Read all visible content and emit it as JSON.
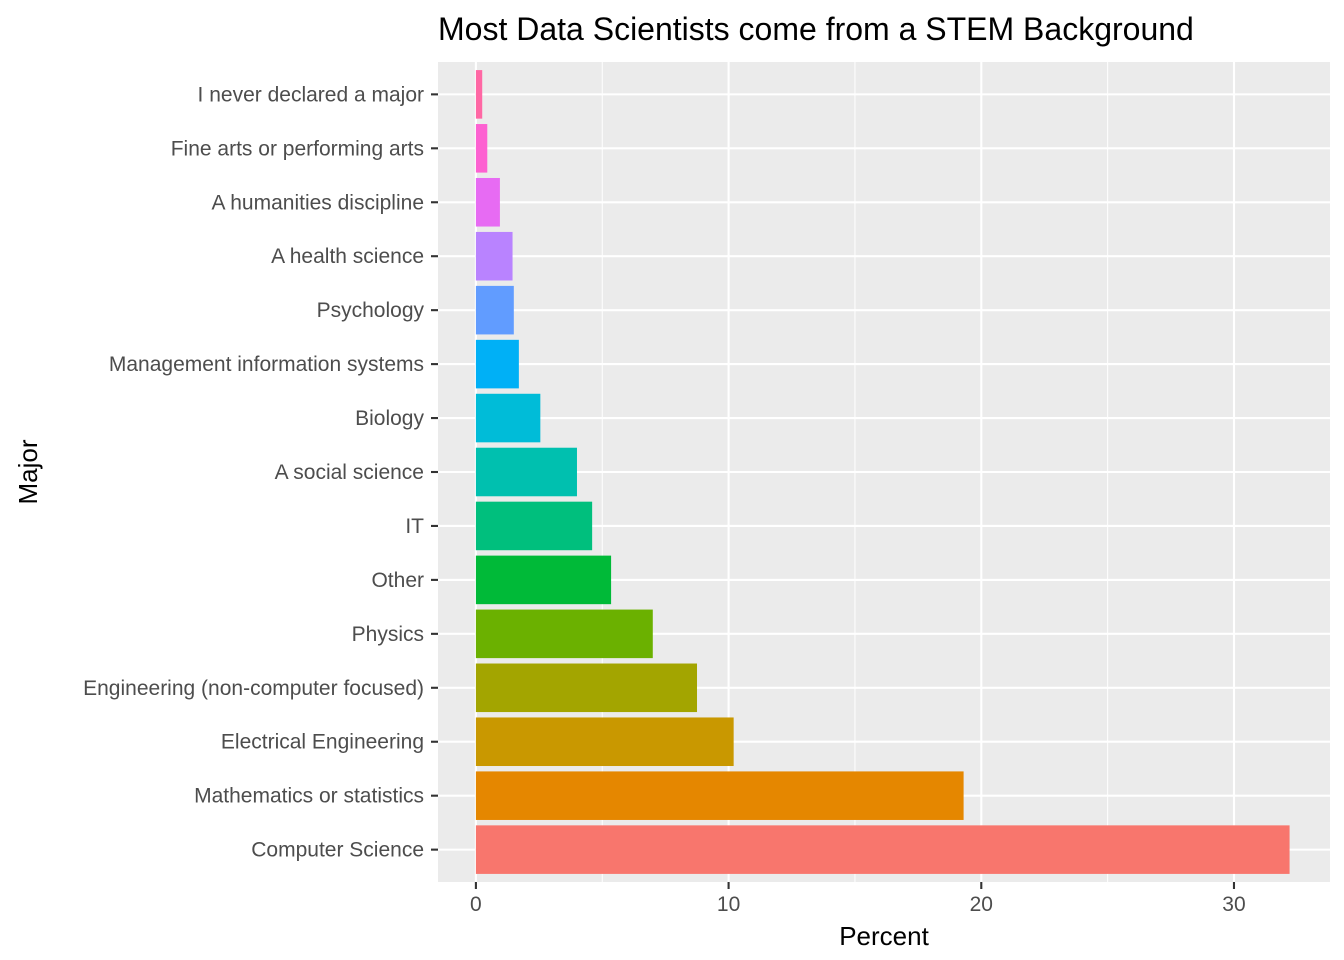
{
  "chart_data": {
    "type": "bar",
    "orientation": "horizontal",
    "title": "Most Data Scientists come from a STEM Background",
    "xlabel": "Percent",
    "ylabel": "Major",
    "xlim": [
      -1.5,
      33.8
    ],
    "xticks": [
      0,
      10,
      20,
      30
    ],
    "xtick_labels": [
      "0",
      "10",
      "20",
      "30"
    ],
    "grid": true,
    "legend": "none",
    "categories": [
      "Computer Science",
      "Mathematics or statistics",
      "Electrical Engineering",
      "Engineering (non-computer focused)",
      "Physics",
      "Other",
      "IT",
      "A social science",
      "Biology",
      "Management information systems",
      "Psychology",
      "A health science",
      "A humanities discipline",
      "Fine arts or performing arts",
      "I never declared a major"
    ],
    "values": [
      32.2,
      19.3,
      10.2,
      8.75,
      7.0,
      5.35,
      4.6,
      4.0,
      2.55,
      1.7,
      1.5,
      1.45,
      0.95,
      0.45,
      0.25
    ],
    "colors": [
      "#F8766D",
      "#E58700",
      "#C99800",
      "#A3A500",
      "#6BB100",
      "#00BA38",
      "#00BF7D",
      "#00C0AF",
      "#00BCD8",
      "#00B0F6",
      "#619CFF",
      "#B983FF",
      "#E76BF3",
      "#FD61D1",
      "#FF67A4"
    ]
  }
}
